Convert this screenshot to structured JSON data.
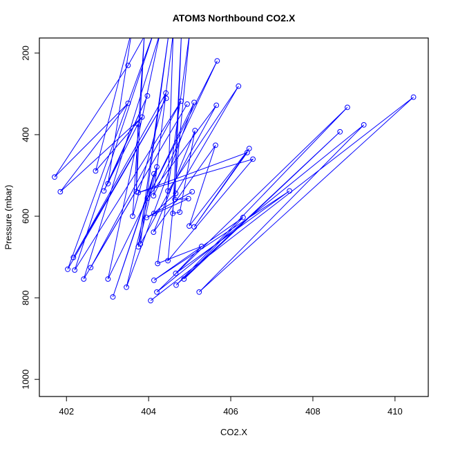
{
  "title": "ATOM3 Northbound CO2.X",
  "chart_data": {
    "type": "line",
    "style": "connected-scatter-type-o",
    "title": "ATOM3 Northbound CO2.X",
    "xlabel": "CO2.X",
    "ylabel": "Pressure (mbar)",
    "xlim": [
      401.34,
      410.81
    ],
    "ylim": [
      163,
      1042
    ],
    "y_axis_reversed": true,
    "x_ticks": [
      402,
      404,
      406,
      408,
      410
    ],
    "y_ticks": [
      200,
      400,
      600,
      800,
      1000
    ],
    "grid": false,
    "legend": false,
    "line_color": "#0000FF",
    "point_style": "open-circle",
    "point_color": "#0000FF",
    "box_color": "#000000",
    "points_format": "[co2_ppm, pressure_mbar, marker_drawn]",
    "points": [
      [
        404.0,
        140,
        false
      ],
      [
        403.5,
        230,
        true
      ],
      [
        401.71,
        504,
        true
      ],
      [
        403.5,
        323,
        true
      ],
      [
        401.85,
        540,
        true
      ],
      [
        403.84,
        357,
        true
      ],
      [
        402.71,
        489,
        true
      ],
      [
        403.6,
        140,
        false
      ],
      [
        403.01,
        520,
        true
      ],
      [
        403.97,
        305,
        true
      ],
      [
        402.91,
        538,
        true
      ],
      [
        403.74,
        374,
        true
      ],
      [
        403.7,
        540,
        true
      ],
      [
        403.9,
        148,
        false
      ],
      [
        403.61,
        600,
        true
      ],
      [
        404.42,
        298,
        true
      ],
      [
        402.17,
        701,
        true
      ],
      [
        404.43,
        311,
        true
      ],
      [
        402.03,
        730,
        true
      ],
      [
        404.15,
        142,
        false
      ],
      [
        402.2,
        732,
        true
      ],
      [
        404.79,
        318,
        true
      ],
      [
        402.59,
        726,
        true
      ],
      [
        404.94,
        325,
        true
      ],
      [
        402.42,
        754,
        true
      ],
      [
        404.28,
        150,
        false
      ],
      [
        403.01,
        754,
        true
      ],
      [
        405.11,
        321,
        true
      ],
      [
        403.46,
        774,
        true
      ],
      [
        404.13,
        496,
        true
      ],
      [
        403.13,
        798,
        true
      ],
      [
        404.2,
        479,
        true
      ],
      [
        403.75,
        675,
        true
      ],
      [
        404.5,
        145,
        false
      ],
      [
        403.8,
        668,
        true
      ],
      [
        405.65,
        328,
        true
      ],
      [
        403.97,
        556,
        true
      ],
      [
        405.67,
        219,
        true
      ],
      [
        404.12,
        550,
        true
      ],
      [
        404.6,
        150,
        false
      ],
      [
        404.47,
        538,
        true
      ],
      [
        406.19,
        281,
        true
      ],
      [
        404.66,
        544,
        true
      ],
      [
        404.13,
        593,
        true
      ],
      [
        405.06,
        540,
        true
      ],
      [
        403.95,
        603,
        true
      ],
      [
        404.97,
        557,
        true
      ],
      [
        404.64,
        559,
        true
      ],
      [
        404.8,
        150,
        false
      ],
      [
        404.59,
        593,
        true
      ],
      [
        404.76,
        590,
        true
      ],
      [
        405.13,
        390,
        true
      ],
      [
        404.12,
        639,
        true
      ],
      [
        405.63,
        426,
        true
      ],
      [
        404.99,
        624,
        true
      ],
      [
        406.45,
        434,
        true
      ],
      [
        405.11,
        626,
        true
      ],
      [
        406.4,
        444,
        true
      ],
      [
        403.75,
        542,
        true
      ],
      [
        406.54,
        460,
        true
      ],
      [
        404.47,
        709,
        true
      ],
      [
        405.0,
        150,
        false
      ],
      [
        404.22,
        716,
        true
      ],
      [
        405.29,
        674,
        true
      ],
      [
        404.66,
        740,
        true
      ],
      [
        407.43,
        538,
        true
      ],
      [
        404.13,
        757,
        true
      ],
      [
        406.3,
        603,
        true
      ],
      [
        404.86,
        754,
        true
      ],
      [
        408.66,
        393,
        true
      ],
      [
        404.67,
        769,
        true
      ],
      [
        408.84,
        333,
        true
      ],
      [
        404.2,
        786,
        true
      ],
      [
        409.24,
        376,
        true
      ],
      [
        405.23,
        786,
        true
      ],
      [
        410.45,
        308,
        true
      ],
      [
        404.05,
        807,
        true
      ]
    ]
  }
}
